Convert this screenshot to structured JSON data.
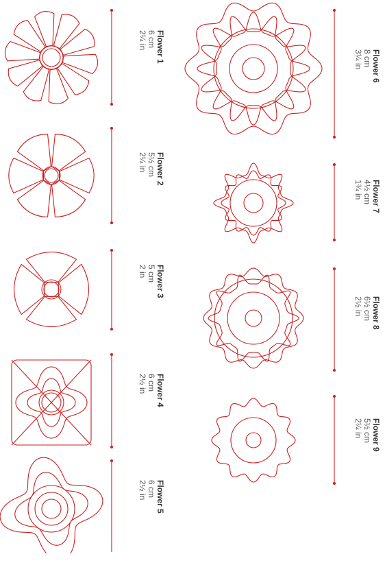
{
  "accent_color": "#cc1e1e",
  "flowers": [
    {
      "name": "Flower 1",
      "cm": "6 cm",
      "in": "2¼ in"
    },
    {
      "name": "Flower 2",
      "cm": "5½ cm",
      "in": "2¼ in"
    },
    {
      "name": "Flower 3",
      "cm": "5 cm",
      "in": "2 in"
    },
    {
      "name": "Flower 4",
      "cm": "6 cm",
      "in": "2½ in"
    },
    {
      "name": "Flower 5",
      "cm": "6 cm",
      "in": "2½ in"
    },
    {
      "name": "Flower 6",
      "cm": "8 cm",
      "in": "3¼ in"
    },
    {
      "name": "Flower 7",
      "cm": "4½ cm",
      "in": "1¾ in"
    },
    {
      "name": "Flower 8",
      "cm": "6½ cm",
      "in": "2½ in"
    },
    {
      "name": "Flower 9",
      "cm": "5½ cm",
      "in": "2¼ in"
    }
  ]
}
